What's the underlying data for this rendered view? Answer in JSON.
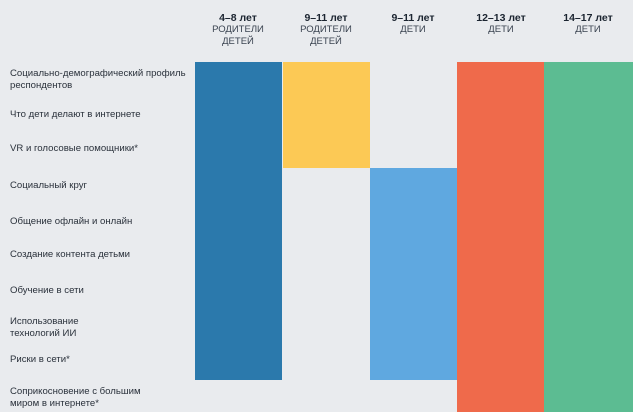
{
  "columns": [
    {
      "age": "4–8 лет",
      "sub": "РОДИТЕЛИ ДЕТЕЙ"
    },
    {
      "age": "9–11 лет",
      "sub": "РОДИТЕЛИ ДЕТЕЙ"
    },
    {
      "age": "9–11 лет",
      "sub": "ДЕТИ"
    },
    {
      "age": "12–13 лет",
      "sub": "ДЕТИ"
    },
    {
      "age": "14–17 лет",
      "sub": "ДЕТИ"
    }
  ],
  "rows": [
    "Социально-демографический профиль респондентов",
    "Что дети делают в интернете",
    "VR и голосовые помощники*",
    "Социальный круг",
    "Общение офлайн и онлайн",
    "Создание контента детьми",
    "Обучение в сети",
    "Использование технологий ИИ",
    "Риски в сети*",
    "Соприкосновение с большим миром в интернете*"
  ],
  "colors": {
    "col1": "#2b79ac",
    "col2": "#fcc955",
    "col3": "#5fa8e0",
    "col4": "#ef6a4b",
    "col5": "#5cbc92"
  }
}
